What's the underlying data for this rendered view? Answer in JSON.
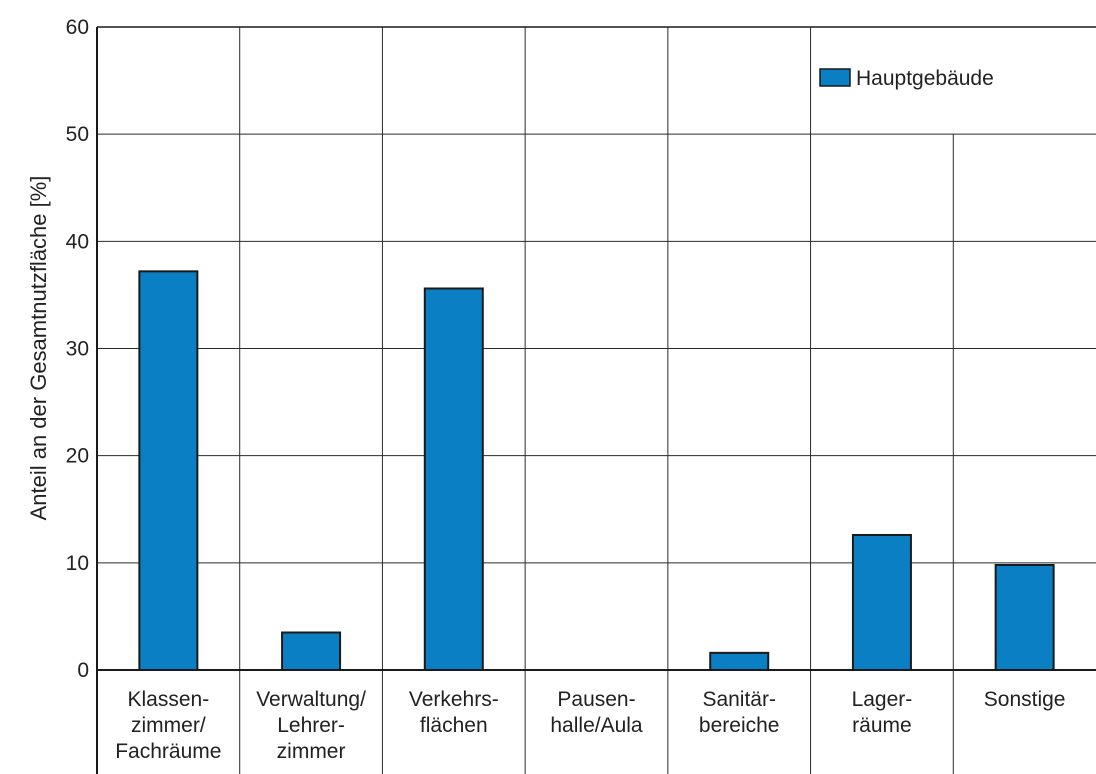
{
  "chart_data": {
    "type": "bar",
    "ylabel": "Anteil an der Gesamtnutzfläche [%]",
    "ylim": [
      0,
      60
    ],
    "yticks": [
      0,
      10,
      20,
      30,
      40,
      50,
      60
    ],
    "grid": true,
    "legend_position": "top-right",
    "categories": [
      [
        "Klassen-",
        "zimmer/",
        "Fachräume"
      ],
      [
        "Verwaltung/",
        "Lehrer-",
        "zimmer"
      ],
      [
        "Verkehrs-",
        "flächen"
      ],
      [
        "Pausen-",
        "halle/Aula"
      ],
      [
        "Sanitär-",
        "bereiche"
      ],
      [
        "Lager-",
        "räume"
      ],
      [
        "Sonstige"
      ]
    ],
    "series": [
      {
        "name": "Hauptgebäude",
        "color": "#0b7fc4",
        "values": [
          37.2,
          3.5,
          35.6,
          0,
          1.6,
          12.6,
          9.8
        ]
      }
    ]
  }
}
